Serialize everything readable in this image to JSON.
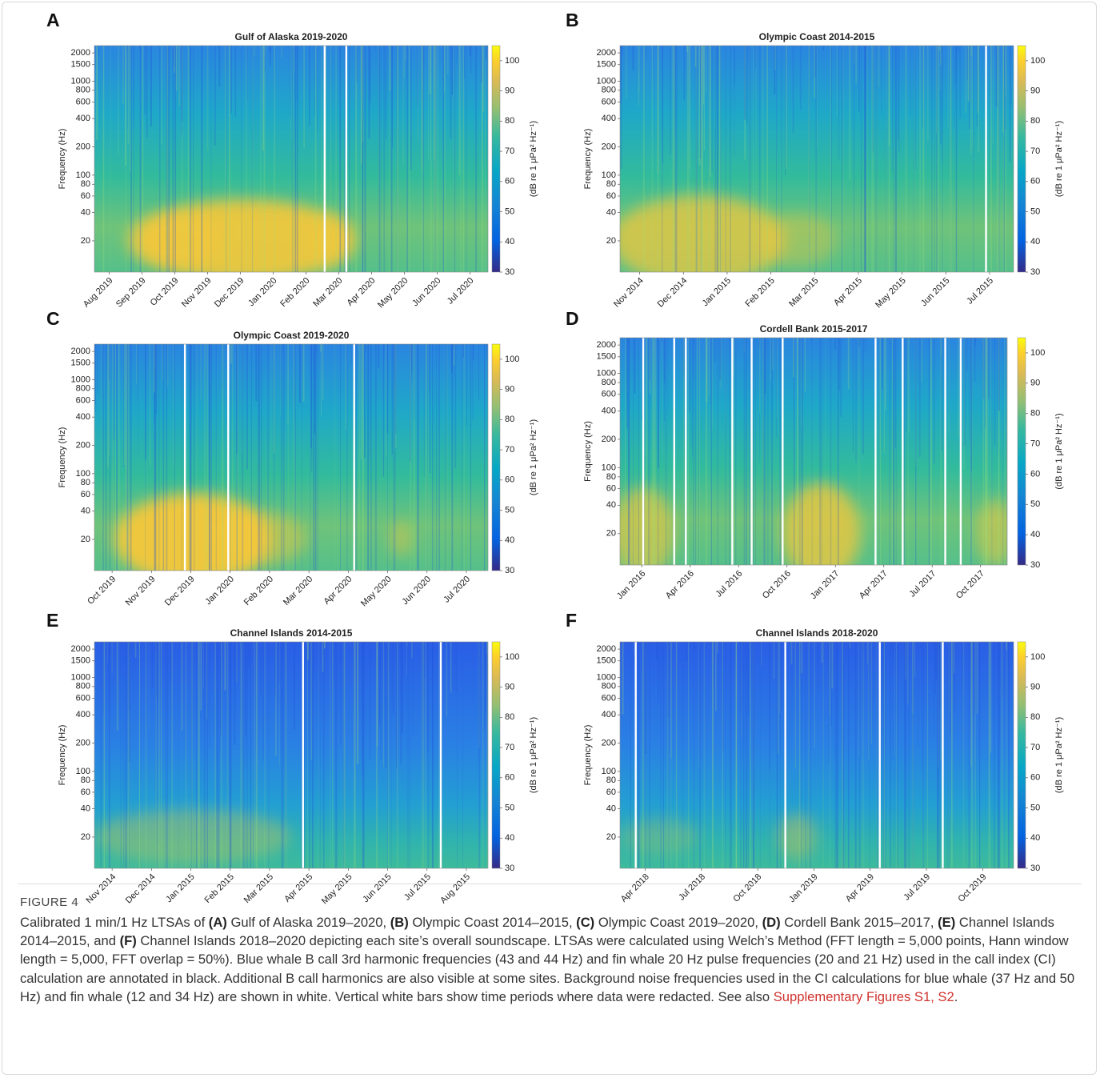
{
  "chart_data": [
    {
      "type": "heatmap",
      "panel_label": "A",
      "title": "Gulf of Alaska 2019-2020",
      "ylabel": "Frequency (Hz)",
      "yscale": "log",
      "ylim": [
        9.3,
        2390
      ],
      "yticks": [
        20,
        40,
        60,
        80,
        100,
        200,
        400,
        600,
        800,
        1000,
        1500,
        2000
      ],
      "categories": [
        "Aug 2019",
        "Sep 2019",
        "Oct 2019",
        "Nov 2019",
        "Dec 2019",
        "Jan 2020",
        "Feb 2020",
        "Mar 2020",
        "Apr 2020",
        "May 2020",
        "Jun 2020",
        "Jul 2020"
      ],
      "colorbar": {
        "label": "(dB re 1 μPa² Hz⁻¹)",
        "lim": [
          30,
          105
        ],
        "ticks": [
          30,
          40,
          50,
          60,
          70,
          80,
          90,
          100
        ]
      }
    },
    {
      "type": "heatmap",
      "panel_label": "B",
      "title": "Olympic Coast 2014-2015",
      "ylabel": "Frequency (Hz)",
      "yscale": "log",
      "ylim": [
        9.3,
        2390
      ],
      "yticks": [
        20,
        40,
        60,
        80,
        100,
        200,
        400,
        600,
        800,
        1000,
        1500,
        2000
      ],
      "categories": [
        "Nov 2014",
        "Dec 2014",
        "Jan 2015",
        "Feb 2015",
        "Mar 2015",
        "Apr 2015",
        "May 2015",
        "Jun 2015",
        "Jul 2015"
      ],
      "colorbar": {
        "label": "(dB re 1 μPa² Hz⁻¹)",
        "lim": [
          30,
          105
        ],
        "ticks": [
          30,
          40,
          50,
          60,
          70,
          80,
          90,
          100
        ]
      }
    },
    {
      "type": "heatmap",
      "panel_label": "C",
      "title": "Olympic Coast 2019-2020",
      "ylabel": "Frequency (Hz)",
      "yscale": "log",
      "ylim": [
        9.3,
        2390
      ],
      "yticks": [
        20,
        40,
        60,
        80,
        100,
        200,
        400,
        600,
        800,
        1000,
        1500,
        2000
      ],
      "categories": [
        "Oct 2019",
        "Nov 2019",
        "Dec 2019",
        "Jan 2020",
        "Feb 2020",
        "Mar 2020",
        "Apr 2020",
        "May 2020",
        "Jun 2020",
        "Jul 2020"
      ],
      "colorbar": {
        "label": "(dB re 1 μPa² Hz⁻¹)",
        "lim": [
          30,
          105
        ],
        "ticks": [
          30,
          40,
          50,
          60,
          70,
          80,
          90,
          100
        ]
      }
    },
    {
      "type": "heatmap",
      "panel_label": "D",
      "title": "Cordell Bank 2015-2017",
      "ylabel": "Frequency (Hz)",
      "yscale": "log",
      "ylim": [
        9.3,
        2390
      ],
      "yticks": [
        20,
        40,
        60,
        80,
        100,
        200,
        400,
        600,
        800,
        1000,
        1500,
        2000
      ],
      "categories": [
        "Jan 2016",
        "Apr 2016",
        "Jul 2016",
        "Oct 2016",
        "Jan 2017",
        "Apr 2017",
        "Jul 2017",
        "Oct 2017"
      ],
      "colorbar": {
        "label": "(dB re 1 μPa² Hz⁻¹)",
        "lim": [
          30,
          105
        ],
        "ticks": [
          30,
          40,
          50,
          60,
          70,
          80,
          90,
          100
        ]
      }
    },
    {
      "type": "heatmap",
      "panel_label": "E",
      "title": "Channel Islands 2014-2015",
      "ylabel": "Frequency (Hz)",
      "yscale": "log",
      "ylim": [
        9.3,
        2390
      ],
      "yticks": [
        20,
        40,
        60,
        80,
        100,
        200,
        400,
        600,
        800,
        1000,
        1500,
        2000
      ],
      "categories": [
        "Nov 2014",
        "Dec 2014",
        "Jan 2015",
        "Feb 2015",
        "Mar 2015",
        "Apr 2015",
        "May 2015",
        "Jun 2015",
        "Jul 2015",
        "Aug 2015"
      ],
      "colorbar": {
        "label": "(dB re 1 μPa² Hz⁻¹)",
        "lim": [
          30,
          105
        ],
        "ticks": [
          30,
          40,
          50,
          60,
          70,
          80,
          90,
          100
        ]
      }
    },
    {
      "type": "heatmap",
      "panel_label": "F",
      "title": "Channel Islands 2018-2020",
      "ylabel": "Frequency (Hz)",
      "yscale": "log",
      "ylim": [
        9.3,
        2390
      ],
      "yticks": [
        20,
        40,
        60,
        80,
        100,
        200,
        400,
        600,
        800,
        1000,
        1500,
        2000
      ],
      "categories": [
        "Apr 2018",
        "Jul 2018",
        "Oct 2018",
        "Jan 2019",
        "Apr 2019",
        "Jul 2019",
        "Oct 2019"
      ],
      "colorbar": {
        "label": "(dB re 1 μPa² Hz⁻¹)",
        "lim": [
          30,
          105
        ],
        "ticks": [
          30,
          40,
          50,
          60,
          70,
          80,
          90,
          100
        ]
      }
    }
  ],
  "caption": {
    "label": "FIGURE 4",
    "segments": [
      {
        "text": "Calibrated 1 min/1 Hz LTSAs of "
      },
      {
        "text": "(A)",
        "bold": true
      },
      {
        "text": " Gulf of Alaska 2019–2020, "
      },
      {
        "text": "(B)",
        "bold": true
      },
      {
        "text": " Olympic Coast 2014–2015, "
      },
      {
        "text": "(C)",
        "bold": true
      },
      {
        "text": " Olympic Coast 2019–2020, "
      },
      {
        "text": "(D)",
        "bold": true
      },
      {
        "text": " Cordell Bank 2015–2017, "
      },
      {
        "text": "(E)",
        "bold": true
      },
      {
        "text": " Channel Islands 2014–2015, and "
      },
      {
        "text": "(F)",
        "bold": true
      },
      {
        "text": " Channel Islands 2018–2020 depicting each site’s overall soundscape. LTSAs were calculated using Welch’s Method (FFT length = 5,000 points, Hann window length = 5,000, FFT overlap = 50%). Blue whale B call 3rd harmonic frequencies (43 and 44 Hz) and fin whale 20 Hz pulse frequencies (20 and 21 Hz) used in the call index (CI) calculation are annotated in black. Additional B call harmonics are also visible at some sites. Background noise frequencies used in the CI calculations for blue whale (37 Hz and 50 Hz) and fin whale (12 and 34 Hz) are shown in white. Vertical white bars show time periods where data were redacted. See also "
      },
      {
        "text": "Supplementary Figures S1, S2",
        "link": true
      },
      {
        "text": "."
      }
    ]
  }
}
